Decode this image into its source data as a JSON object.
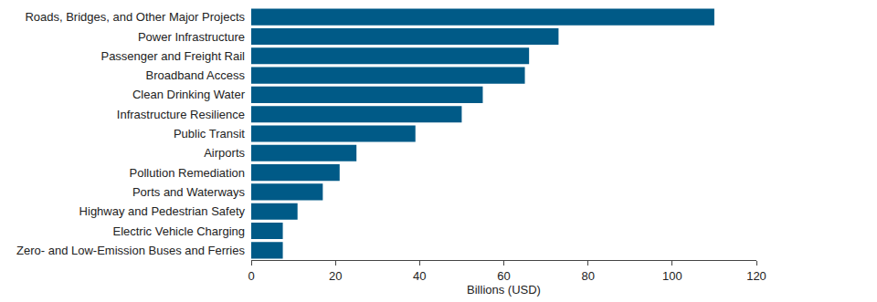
{
  "chart_data": {
    "type": "bar",
    "orientation": "horizontal",
    "categories": [
      "Roads, Bridges, and Other Major Projects",
      "Power Infrastructure",
      "Passenger and Freight Rail",
      "Broadband Access",
      "Clean Drinking Water",
      "Infrastructure Resilience",
      "Public Transit",
      "Airports",
      "Pollution Remediation",
      "Ports and Waterways",
      "Highway and Pedestrian Safety",
      "Electric Vehicle Charging",
      "Zero- and Low-Emission Buses and Ferries"
    ],
    "values": [
      110,
      73,
      66,
      65,
      55,
      50,
      39,
      25,
      21,
      17,
      11,
      7.5,
      7.5
    ],
    "color": "#005a87",
    "x_label": "Billions (USD)",
    "xlim": [
      0,
      120
    ],
    "xticks": [
      0,
      20,
      40,
      60,
      80,
      100,
      120
    ],
    "grid": false
  }
}
